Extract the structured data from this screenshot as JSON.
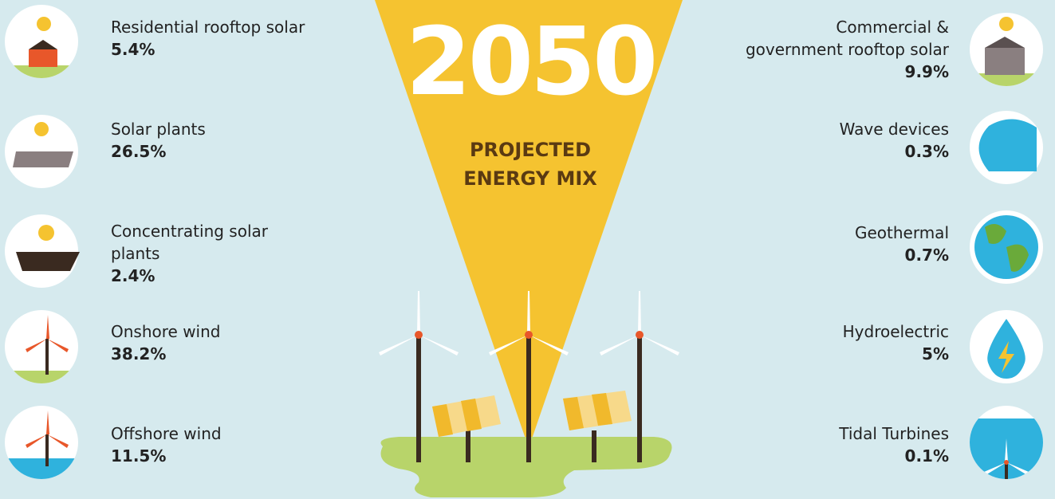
{
  "header": {
    "title": "2050",
    "subtitle": "PROJECTED\nENERGY MIX"
  },
  "left": [
    {
      "label": "Residential rooftop solar",
      "value": "5.4%"
    },
    {
      "label": "Solar plants",
      "value": "26.5%"
    },
    {
      "label": "Concentrating solar\nplants",
      "value": "2.4%"
    },
    {
      "label": "Onshore wind",
      "value": "38.2%"
    },
    {
      "label": "Offshore wind",
      "value": "11.5%"
    }
  ],
  "right": [
    {
      "label": "Commercial &\ngovernment rooftop solar",
      "value": "9.9%"
    },
    {
      "label": "Wave devices",
      "value": "0.3%"
    },
    {
      "label": "Geothermal",
      "value": "0.7%"
    },
    {
      "label": "Hydroelectric",
      "value": "5%"
    },
    {
      "label": "Tidal Turbines",
      "value": "0.1%"
    }
  ]
}
